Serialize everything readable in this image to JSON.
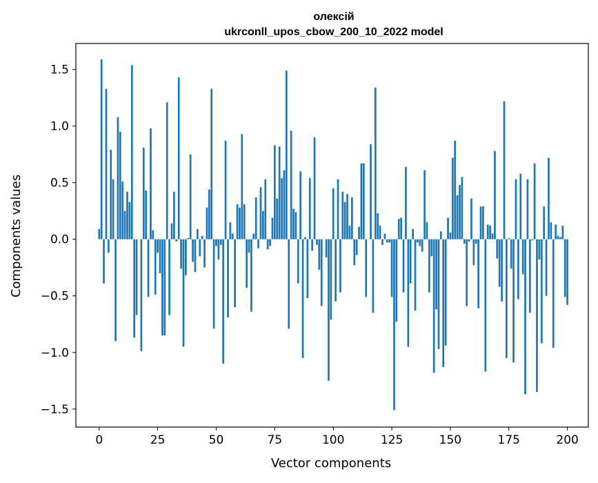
{
  "chart_data": {
    "type": "bar",
    "title_lines": [
      "олексій",
      "ukrconll_upos_cbow_200_10_2022 model"
    ],
    "xlabel": "Vector components",
    "ylabel": "Components values",
    "xlim": [
      -9.95,
      208.95
    ],
    "ylim": [
      -1.66,
      1.73
    ],
    "xticks": [
      0,
      25,
      50,
      75,
      100,
      125,
      150,
      175,
      200
    ],
    "xtick_labels": [
      "0",
      "25",
      "50",
      "75",
      "100",
      "125",
      "150",
      "175",
      "200"
    ],
    "yticks": [
      1.5,
      1.0,
      0.5,
      0.0,
      -0.5,
      -1.0,
      -1.5
    ],
    "ytick_labels": [
      "1.5",
      "1.0",
      "0.5",
      "0.0",
      "−0.5",
      "−1.0",
      "−1.5"
    ],
    "bar_color": "#1f77b4",
    "grid": false,
    "values": [
      0.09,
      1.59,
      -0.39,
      1.33,
      -0.12,
      0.79,
      0.53,
      -0.9,
      1.08,
      0.95,
      0.51,
      0.25,
      0.42,
      0.33,
      1.54,
      -0.87,
      -0.67,
      0.0,
      -0.99,
      0.81,
      0.43,
      -0.51,
      0.98,
      0.08,
      -0.49,
      -0.12,
      -0.3,
      -0.85,
      -0.85,
      1.21,
      -0.67,
      0.14,
      0.42,
      -0.02,
      1.43,
      -0.26,
      -0.95,
      -0.32,
      0.01,
      0.75,
      -0.2,
      -0.29,
      0.09,
      -0.15,
      0.03,
      -0.25,
      0.28,
      0.44,
      1.33,
      -0.79,
      -0.06,
      -0.18,
      -0.05,
      -1.1,
      0.87,
      -0.69,
      0.15,
      0.05,
      -0.6,
      0.31,
      0.28,
      0.93,
      0.31,
      -0.43,
      -0.12,
      -0.64,
      0.05,
      0.37,
      -0.08,
      0.46,
      0.25,
      0.53,
      -0.09,
      -0.06,
      0.19,
      0.83,
      0.36,
      0.82,
      0.54,
      0.61,
      1.49,
      -0.79,
      0.96,
      0.27,
      0.24,
      -0.39,
      0.6,
      -1.05,
      0.02,
      -0.52,
      0.54,
      -0.1,
      0.9,
      -0.05,
      -0.27,
      -0.59,
      0.0,
      -0.16,
      -1.25,
      -0.71,
      0.45,
      -0.55,
      0.53,
      -0.47,
      0.42,
      0.33,
      0.4,
      0.12,
      0.37,
      -0.23,
      -0.14,
      0.11,
      0.67,
      0.67,
      -0.51,
      0.0,
      0.84,
      -0.65,
      1.34,
      0.23,
      0.12,
      -0.05,
      0.05,
      -0.03,
      -0.03,
      -0.51,
      -1.51,
      -0.73,
      0.18,
      0.19,
      -0.47,
      0.64,
      -0.95,
      -0.39,
      0.09,
      -0.63,
      -0.03,
      -0.06,
      -0.11,
      0.61,
      0.15,
      -0.47,
      -0.15,
      -1.18,
      -0.62,
      -0.97,
      0.07,
      -1.13,
      -0.94,
      0.19,
      0.06,
      0.72,
      0.87,
      0.39,
      0.48,
      0.55,
      -0.04,
      -0.59,
      -0.02,
      0.36,
      -0.23,
      -0.04,
      -0.61,
      0.29,
      0.29,
      -1.17,
      0.13,
      0.12,
      0.05,
      0.78,
      -0.17,
      -0.42,
      -0.55,
      1.22,
      -1.05,
      0.01,
      -0.26,
      -1.09,
      0.53,
      -0.53,
      0.58,
      -0.31,
      -1.37,
      0.53,
      -0.65,
      -0.01,
      0.67,
      -1.35,
      -0.18,
      -0.92,
      0.29,
      -0.5,
      0.72,
      0.15,
      -0.96,
      0.13,
      0.03,
      0.02,
      0.12,
      -0.51,
      -0.58
    ]
  }
}
